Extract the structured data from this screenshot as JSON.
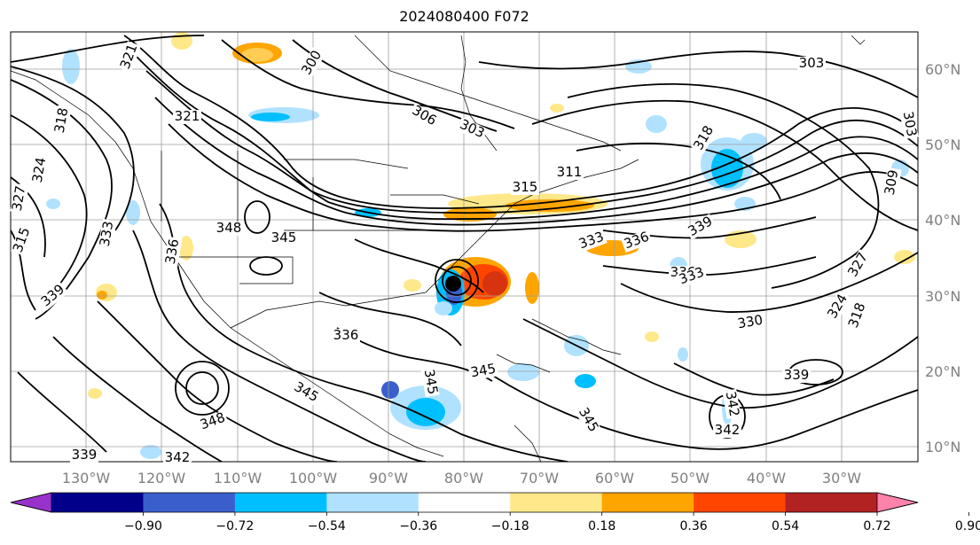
{
  "title": "2024080400 F072",
  "map": {
    "lat_labels": [
      "60°N",
      "50°N",
      "40°N",
      "30°N",
      "20°N",
      "10°N"
    ],
    "lon_labels": [
      "130°W",
      "120°W",
      "110°W",
      "100°W",
      "90°W",
      "80°W",
      "70°W",
      "60°W",
      "50°W",
      "40°W",
      "30°W"
    ],
    "contour_labels": [
      "321",
      "300",
      "303",
      "306",
      "303",
      "321",
      "324",
      "327",
      "318",
      "315",
      "333",
      "336",
      "348",
      "345",
      "311",
      "315",
      "318",
      "333",
      "336",
      "339",
      "336",
      "330",
      "333",
      "327",
      "324",
      "318",
      "309",
      "303",
      "348",
      "345",
      "342",
      "339",
      "339",
      "345",
      "345",
      "336",
      "342",
      "345",
      "342",
      "339"
    ]
  },
  "colorbar": {
    "tick_labels": [
      "−0.90",
      "−0.72",
      "−0.54",
      "−0.36",
      "−0.18",
      "0.18",
      "0.36",
      "0.54",
      "0.72",
      "0.90"
    ],
    "colors": [
      "#9932cc",
      "#00008b",
      "#3a5fcd",
      "#00bfff",
      "#b0e2ff",
      "#ffffff",
      "#ffe88a",
      "#ffa500",
      "#ff4500",
      "#b22222",
      "#ff82ab"
    ]
  }
}
